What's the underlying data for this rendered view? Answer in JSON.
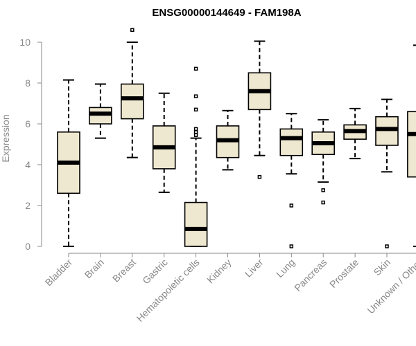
{
  "chart_data": {
    "type": "boxplot",
    "title": "ENSG00000144649 - FAM198A",
    "ylabel": "Expression",
    "ylim": [
      0,
      10.5
    ],
    "yticks": [
      0,
      2,
      4,
      6,
      8,
      10
    ],
    "box_color": "#efe8d0",
    "categories": [
      "Bladder",
      "Brain",
      "Breast",
      "Gastric",
      "Hematopoietic cells",
      "Kidney",
      "Liver",
      "Lung",
      "Pancreas",
      "Prostate",
      "Skin",
      "Unknown / Other"
    ],
    "boxes": [
      {
        "name": "Bladder",
        "min": 0.0,
        "q1": 2.6,
        "median": 4.1,
        "q3": 5.6,
        "max": 8.15,
        "outliers": []
      },
      {
        "name": "Brain",
        "min": 5.3,
        "q1": 6.0,
        "median": 6.5,
        "q3": 6.8,
        "max": 7.95,
        "outliers": []
      },
      {
        "name": "Breast",
        "min": 4.35,
        "q1": 6.25,
        "median": 7.25,
        "q3": 7.95,
        "max": 10.0,
        "outliers": [
          10.6
        ]
      },
      {
        "name": "Gastric",
        "min": 2.65,
        "q1": 3.8,
        "median": 4.85,
        "q3": 5.9,
        "max": 7.5,
        "outliers": []
      },
      {
        "name": "Hematopoietic cells",
        "min": 0.0,
        "q1": 0.0,
        "median": 0.85,
        "q3": 2.15,
        "max": 5.3,
        "outliers": [
          5.45,
          5.6,
          5.75,
          6.7,
          7.35,
          8.7
        ]
      },
      {
        "name": "Kidney",
        "min": 3.75,
        "q1": 4.35,
        "median": 5.2,
        "q3": 5.9,
        "max": 6.65,
        "outliers": []
      },
      {
        "name": "Liver",
        "min": 4.45,
        "q1": 6.7,
        "median": 7.6,
        "q3": 8.5,
        "max": 10.05,
        "outliers": [
          3.4
        ]
      },
      {
        "name": "Lung",
        "min": 3.55,
        "q1": 4.45,
        "median": 5.3,
        "q3": 5.75,
        "max": 6.5,
        "outliers": [
          2.0,
          0.0
        ]
      },
      {
        "name": "Pancreas",
        "min": 3.15,
        "q1": 4.5,
        "median": 5.05,
        "q3": 5.6,
        "max": 6.2,
        "outliers": [
          2.75,
          2.15
        ]
      },
      {
        "name": "Prostate",
        "min": 4.3,
        "q1": 5.25,
        "median": 5.65,
        "q3": 5.95,
        "max": 6.75,
        "outliers": []
      },
      {
        "name": "Skin",
        "min": 3.65,
        "q1": 4.95,
        "median": 5.75,
        "q3": 6.35,
        "max": 7.2,
        "outliers": [
          0.0
        ]
      },
      {
        "name": "Unknown / Other",
        "min": 0.0,
        "q1": 3.4,
        "median": 5.5,
        "q3": 6.6,
        "max": 9.85,
        "outliers": []
      }
    ]
  }
}
